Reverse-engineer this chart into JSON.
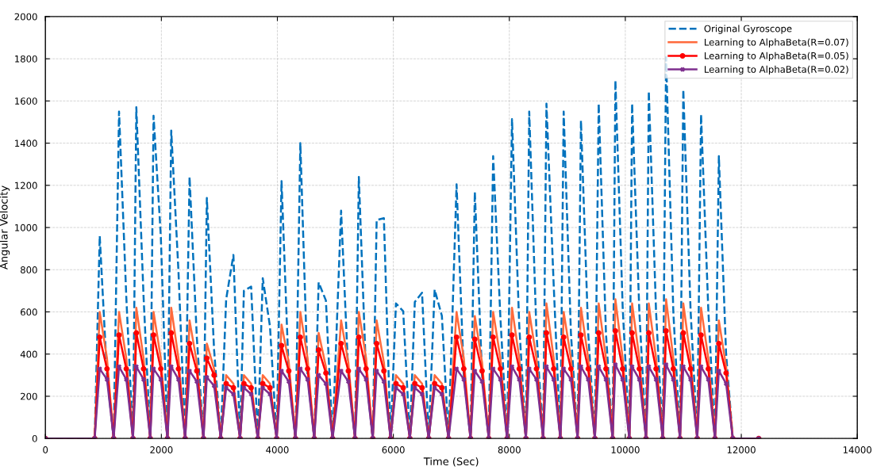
{
  "chart_data": {
    "type": "line",
    "xlabel": "Time (Sec)",
    "ylabel": "Angular Velocity",
    "xlim": [
      0,
      14000
    ],
    "xticks": [
      0,
      2000,
      4000,
      6000,
      8000,
      10000,
      12000,
      14000
    ],
    "ylim": [
      0,
      2000
    ],
    "yticks": [
      0,
      200,
      400,
      600,
      800,
      1000,
      1200,
      1400,
      1600,
      1800,
      2000
    ],
    "grid": true,
    "legend": "top right",
    "x": [
      0,
      850,
      937,
      1062,
      1177,
      1270,
      1395,
      1510,
      1568,
      1693,
      1808,
      1865,
      1990,
      2105,
      2170,
      2295,
      2410,
      2486,
      2611,
      2726,
      2784,
      2909,
      3024,
      3117,
      3242,
      3357,
      3423,
      3548,
      3663,
      3748,
      3873,
      3988,
      4072,
      4197,
      4312,
      4396,
      4521,
      4636,
      4712,
      4837,
      4952,
      5099,
      5224,
      5339,
      5405,
      5530,
      5645,
      5712,
      5837,
      5952,
      6045,
      6170,
      6285,
      6370,
      6495,
      6610,
      6712,
      6837,
      6952,
      7090,
      7215,
      7330,
      7405,
      7530,
      7645,
      7721,
      7846,
      7961,
      8046,
      8171,
      8286,
      8343,
      8468,
      8583,
      8640,
      8765,
      8880,
      8937,
      9062,
      9177,
      9235,
      9360,
      9475,
      9541,
      9666,
      9781,
      9829,
      9954,
      10069,
      10117,
      10242,
      10357,
      10405,
      10530,
      10645,
      10703,
      10828,
      10943,
      11000,
      11125,
      11240,
      11306,
      11431,
      11546,
      11613,
      11738,
      11853,
      12300
    ],
    "series": [
      {
        "name": "Original Gyroscope",
        "color": "#0072bd",
        "line_style": "dashed",
        "marker": "none",
        "values": [
          0,
          0,
          960,
          300,
          0,
          1550,
          670,
          0,
          1570,
          670,
          0,
          1530,
          960,
          0,
          1460,
          790,
          0,
          1240,
          480,
          0,
          1140,
          420,
          0,
          660,
          870,
          0,
          700,
          720,
          0,
          760,
          530,
          0,
          1220,
          300,
          0,
          1400,
          300,
          0,
          740,
          654,
          0,
          1080,
          300,
          0,
          1240,
          300,
          0,
          1036,
          1044,
          0,
          640,
          603,
          0,
          647,
          691,
          0,
          706,
          581,
          0,
          1205,
          300,
          0,
          1169,
          300,
          0,
          1338,
          573,
          0,
          1514,
          536,
          0,
          1550,
          500,
          0,
          1587,
          728,
          0,
          1550,
          500,
          0,
          1507,
          500,
          0,
          1587,
          500,
          0,
          1698,
          625,
          0,
          1587,
          600,
          0,
          1646,
          600,
          0,
          1808,
          600,
          0,
          1654,
          610,
          0,
          1536,
          610,
          0,
          1338,
          400,
          0,
          0
        ]
      },
      {
        "name": "Learning to AlphaBeta(R=0.07)",
        "color": "#ff6a3c",
        "line_style": "solid",
        "marker": "none",
        "values": [
          0,
          0,
          600,
          380,
          0,
          600,
          380,
          0,
          620,
          380,
          0,
          600,
          380,
          0,
          620,
          380,
          0,
          560,
          360,
          0,
          450,
          330,
          0,
          300,
          260,
          0,
          300,
          260,
          0,
          300,
          260,
          0,
          540,
          360,
          0,
          600,
          380,
          0,
          500,
          340,
          0,
          560,
          360,
          0,
          600,
          380,
          0,
          560,
          360,
          0,
          300,
          260,
          0,
          300,
          260,
          0,
          300,
          260,
          0,
          600,
          380,
          0,
          580,
          360,
          0,
          600,
          380,
          0,
          620,
          380,
          0,
          600,
          380,
          0,
          640,
          380,
          0,
          600,
          380,
          0,
          620,
          380,
          0,
          640,
          380,
          0,
          660,
          380,
          0,
          640,
          380,
          0,
          640,
          380,
          0,
          660,
          380,
          0,
          640,
          380,
          0,
          620,
          380,
          0,
          560,
          340,
          0,
          0
        ]
      },
      {
        "name": "Learning to AlphaBeta(R=0.05)",
        "color": "#ff0000",
        "line_style": "solid",
        "marker": "circle",
        "values": [
          0,
          0,
          480,
          330,
          0,
          490,
          330,
          0,
          500,
          330,
          0,
          490,
          330,
          0,
          500,
          330,
          0,
          450,
          320,
          0,
          380,
          300,
          0,
          260,
          240,
          0,
          260,
          240,
          0,
          260,
          240,
          0,
          440,
          320,
          0,
          480,
          330,
          0,
          420,
          310,
          0,
          450,
          320,
          0,
          480,
          330,
          0,
          450,
          320,
          0,
          260,
          240,
          0,
          260,
          240,
          0,
          260,
          240,
          0,
          480,
          330,
          0,
          470,
          320,
          0,
          480,
          330,
          0,
          490,
          330,
          0,
          480,
          330,
          0,
          500,
          330,
          0,
          480,
          330,
          0,
          490,
          330,
          0,
          500,
          330,
          0,
          510,
          330,
          0,
          500,
          330,
          0,
          500,
          330,
          0,
          510,
          330,
          0,
          500,
          330,
          0,
          490,
          330,
          0,
          450,
          310,
          0,
          0
        ]
      },
      {
        "name": "Learning to AlphaBeta(R=0.02)",
        "color": "#7e2f8e",
        "line_style": "solid",
        "marker": "cross",
        "values": [
          0,
          0,
          330,
          280,
          0,
          340,
          280,
          0,
          340,
          280,
          0,
          330,
          280,
          0,
          340,
          280,
          0,
          320,
          270,
          0,
          290,
          250,
          0,
          240,
          210,
          0,
          240,
          210,
          0,
          240,
          210,
          0,
          320,
          270,
          0,
          330,
          280,
          0,
          300,
          260,
          0,
          320,
          270,
          0,
          330,
          280,
          0,
          320,
          270,
          0,
          240,
          210,
          0,
          240,
          210,
          0,
          240,
          210,
          0,
          330,
          280,
          0,
          320,
          270,
          0,
          330,
          280,
          0,
          340,
          280,
          0,
          330,
          280,
          0,
          340,
          280,
          0,
          330,
          280,
          0,
          340,
          280,
          0,
          340,
          280,
          0,
          350,
          280,
          0,
          340,
          280,
          0,
          340,
          280,
          0,
          350,
          280,
          0,
          340,
          280,
          0,
          340,
          280,
          0,
          320,
          260,
          0,
          0
        ]
      }
    ]
  }
}
